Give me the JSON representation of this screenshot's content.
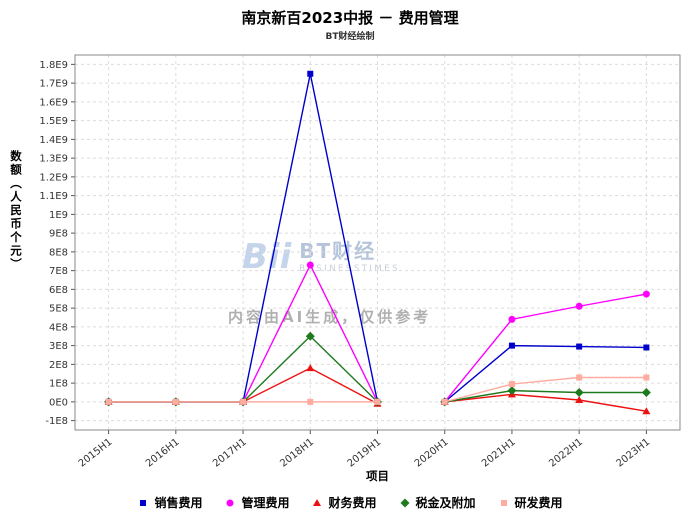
{
  "header": {
    "title": "南京新百2023中报 － 费用管理",
    "subtitle": "BT财经绘制"
  },
  "watermark": {
    "logo": "Bii",
    "brand": "BT财经",
    "brand_sub": "BUSINESSTIMES",
    "disclaimer": "内容由AI生成，仅供参考"
  },
  "chart_data": {
    "type": "line",
    "title": "南京新百2023中报 － 费用管理",
    "subtitle": "BT财经绘制",
    "xlabel": "项目",
    "ylabel": "数额（人民币个元）",
    "grid": true,
    "legend_position": "bottom",
    "ymin": -150000000.0,
    "ymax": 1850000000.0,
    "gap_after_index": 4,
    "categories": [
      "2015H1",
      "2016H1",
      "2017H1",
      "2018H1",
      "2019H1",
      "2020H1",
      "2021H1",
      "2022H1",
      "2023H1"
    ],
    "yticks": {
      "values": [
        -100000000.0,
        0,
        100000000.0,
        200000000.0,
        300000000.0,
        400000000.0,
        500000000.0,
        600000000.0,
        700000000.0,
        800000000.0,
        900000000.0,
        1000000000.0,
        1100000000.0,
        1200000000.0,
        1300000000.0,
        1400000000.0,
        1500000000.0,
        1600000000.0,
        1700000000.0,
        1800000000.0
      ],
      "labels": [
        "-1E8",
        "0E0",
        "1E8",
        "2E8",
        "3E8",
        "4E8",
        "5E8",
        "6E8",
        "7E8",
        "8E8",
        "9E8",
        "1E9",
        "1.1E9",
        "1.2E9",
        "1.3E9",
        "1.4E9",
        "1.5E9",
        "1.6E9",
        "1.7E9",
        "1.8E9"
      ]
    },
    "series": [
      {
        "name": "销售费用",
        "color": "#0000cd",
        "marker": "square",
        "values": [
          0,
          0,
          0,
          1750000000.0,
          0,
          0,
          300000000.0,
          295000000.0,
          290000000.0
        ]
      },
      {
        "name": "管理费用",
        "color": "#ff00ff",
        "marker": "circle",
        "values": [
          0,
          0,
          0,
          730000000.0,
          0,
          0,
          440000000.0,
          510000000.0,
          575000000.0
        ]
      },
      {
        "name": "财务费用",
        "color": "#ee1111",
        "marker": "triangle",
        "values": [
          0,
          0,
          0,
          180000000.0,
          -10000000.0,
          0,
          40000000.0,
          10000000.0,
          -50000000.0
        ]
      },
      {
        "name": "税金及附加",
        "color": "#1e7a1e",
        "marker": "diamond",
        "values": [
          0,
          0,
          0,
          350000000.0,
          0,
          0,
          60000000.0,
          50000000.0,
          50000000.0
        ]
      },
      {
        "name": "研发费用",
        "color": "#ffab9f",
        "marker": "square",
        "values": [
          0,
          0,
          0,
          0,
          0,
          0,
          95000000.0,
          130000000.0,
          130000000.0
        ]
      }
    ]
  }
}
